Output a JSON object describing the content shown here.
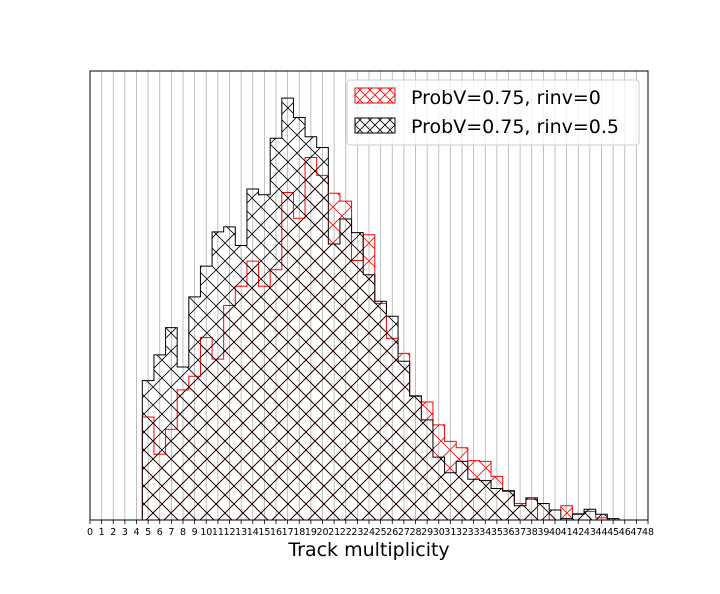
{
  "chart_data": {
    "type": "histogram",
    "xlabel": "Track multiplicity",
    "ylabel": "",
    "xlim": [
      0,
      48
    ],
    "ylim": [
      0,
      0.0628
    ],
    "bin_width": 0.5,
    "grid": {
      "x": true,
      "y": false
    },
    "yticks_visible": false,
    "legend_placement": "top-right",
    "x_ticks": [
      0,
      1,
      2,
      3,
      4,
      5,
      6,
      7,
      8,
      9,
      10,
      11,
      12,
      13,
      14,
      15,
      16,
      17,
      18,
      19,
      20,
      21,
      22,
      23,
      24,
      25,
      26,
      27,
      28,
      29,
      30,
      31,
      32,
      33,
      34,
      35,
      36,
      37,
      38,
      39,
      40,
      41,
      42,
      43,
      44,
      45,
      46,
      47,
      48
    ],
    "series": [
      {
        "name": "ProbV=0.75, rinv=0",
        "color": "#ff0000",
        "bin_start": 4.5,
        "values": [
          0.0144,
          0.0144,
          0.0092,
          0.0092,
          0.0127,
          0.0127,
          0.0182,
          0.0182,
          0.0201,
          0.0201,
          0.0255,
          0.0255,
          0.0225,
          0.0225,
          0.03,
          0.03,
          0.0327,
          0.0327,
          0.0362,
          0.0362,
          0.0327,
          0.0327,
          0.035,
          0.035,
          0.0458,
          0.0458,
          0.0422,
          0.0422,
          0.0507,
          0.0507,
          0.0482,
          0.0482,
          0.0457,
          0.0457,
          0.0446,
          0.0446,
          0.0363,
          0.0363,
          0.0399,
          0.0399,
          0.0303,
          0.0303,
          0.0254,
          0.0254,
          0.0233,
          0.0233,
          0.0174,
          0.0174,
          0.0165,
          0.0165,
          0.0133,
          0.0133,
          0.011,
          0.011,
          0.0101,
          0.0101,
          0.0083,
          0.0083,
          0.0082,
          0.0082,
          0.0061,
          0.0061,
          0.004,
          0.004,
          0.0023,
          0.0023,
          0.0029,
          0.0029,
          0.0,
          0.0,
          0.0014,
          0.0014,
          0.002,
          0.002,
          0.0009,
          0.0009,
          0.0012,
          0.0012,
          0.0003,
          0.0003,
          0.0,
          0.0
        ]
      },
      {
        "name": "ProbV=0.75, rinv=0.5",
        "color": "#000000",
        "bin_start": 4.5,
        "values": [
          0.0195,
          0.0195,
          0.0231,
          0.0231,
          0.0269,
          0.0269,
          0.0214,
          0.0214,
          0.0312,
          0.0312,
          0.0355,
          0.0355,
          0.0403,
          0.0403,
          0.041,
          0.041,
          0.0384,
          0.0384,
          0.0463,
          0.0463,
          0.0455,
          0.0455,
          0.0534,
          0.0534,
          0.059,
          0.059,
          0.0563,
          0.0563,
          0.0536,
          0.0536,
          0.0521,
          0.0521,
          0.0386,
          0.0386,
          0.0421,
          0.0421,
          0.0402,
          0.0402,
          0.0343,
          0.0343,
          0.0306,
          0.0306,
          0.0285,
          0.0285,
          0.0222,
          0.0222,
          0.0173,
          0.0173,
          0.014,
          0.014,
          0.0088,
          0.0088,
          0.0066,
          0.0066,
          0.0082,
          0.0082,
          0.0057,
          0.0057,
          0.0055,
          0.0055,
          0.0044,
          0.0044,
          0.0041,
          0.0041,
          0.002,
          0.002,
          0.0031,
          0.0031,
          0.0023,
          0.0023,
          0.0014,
          0.0014,
          0.0002,
          0.0002,
          0.0008,
          0.0008,
          0.0015,
          0.0015,
          0.0008,
          0.0008,
          0.0002,
          0.0002,
          0.0,
          0.0
        ]
      }
    ]
  }
}
